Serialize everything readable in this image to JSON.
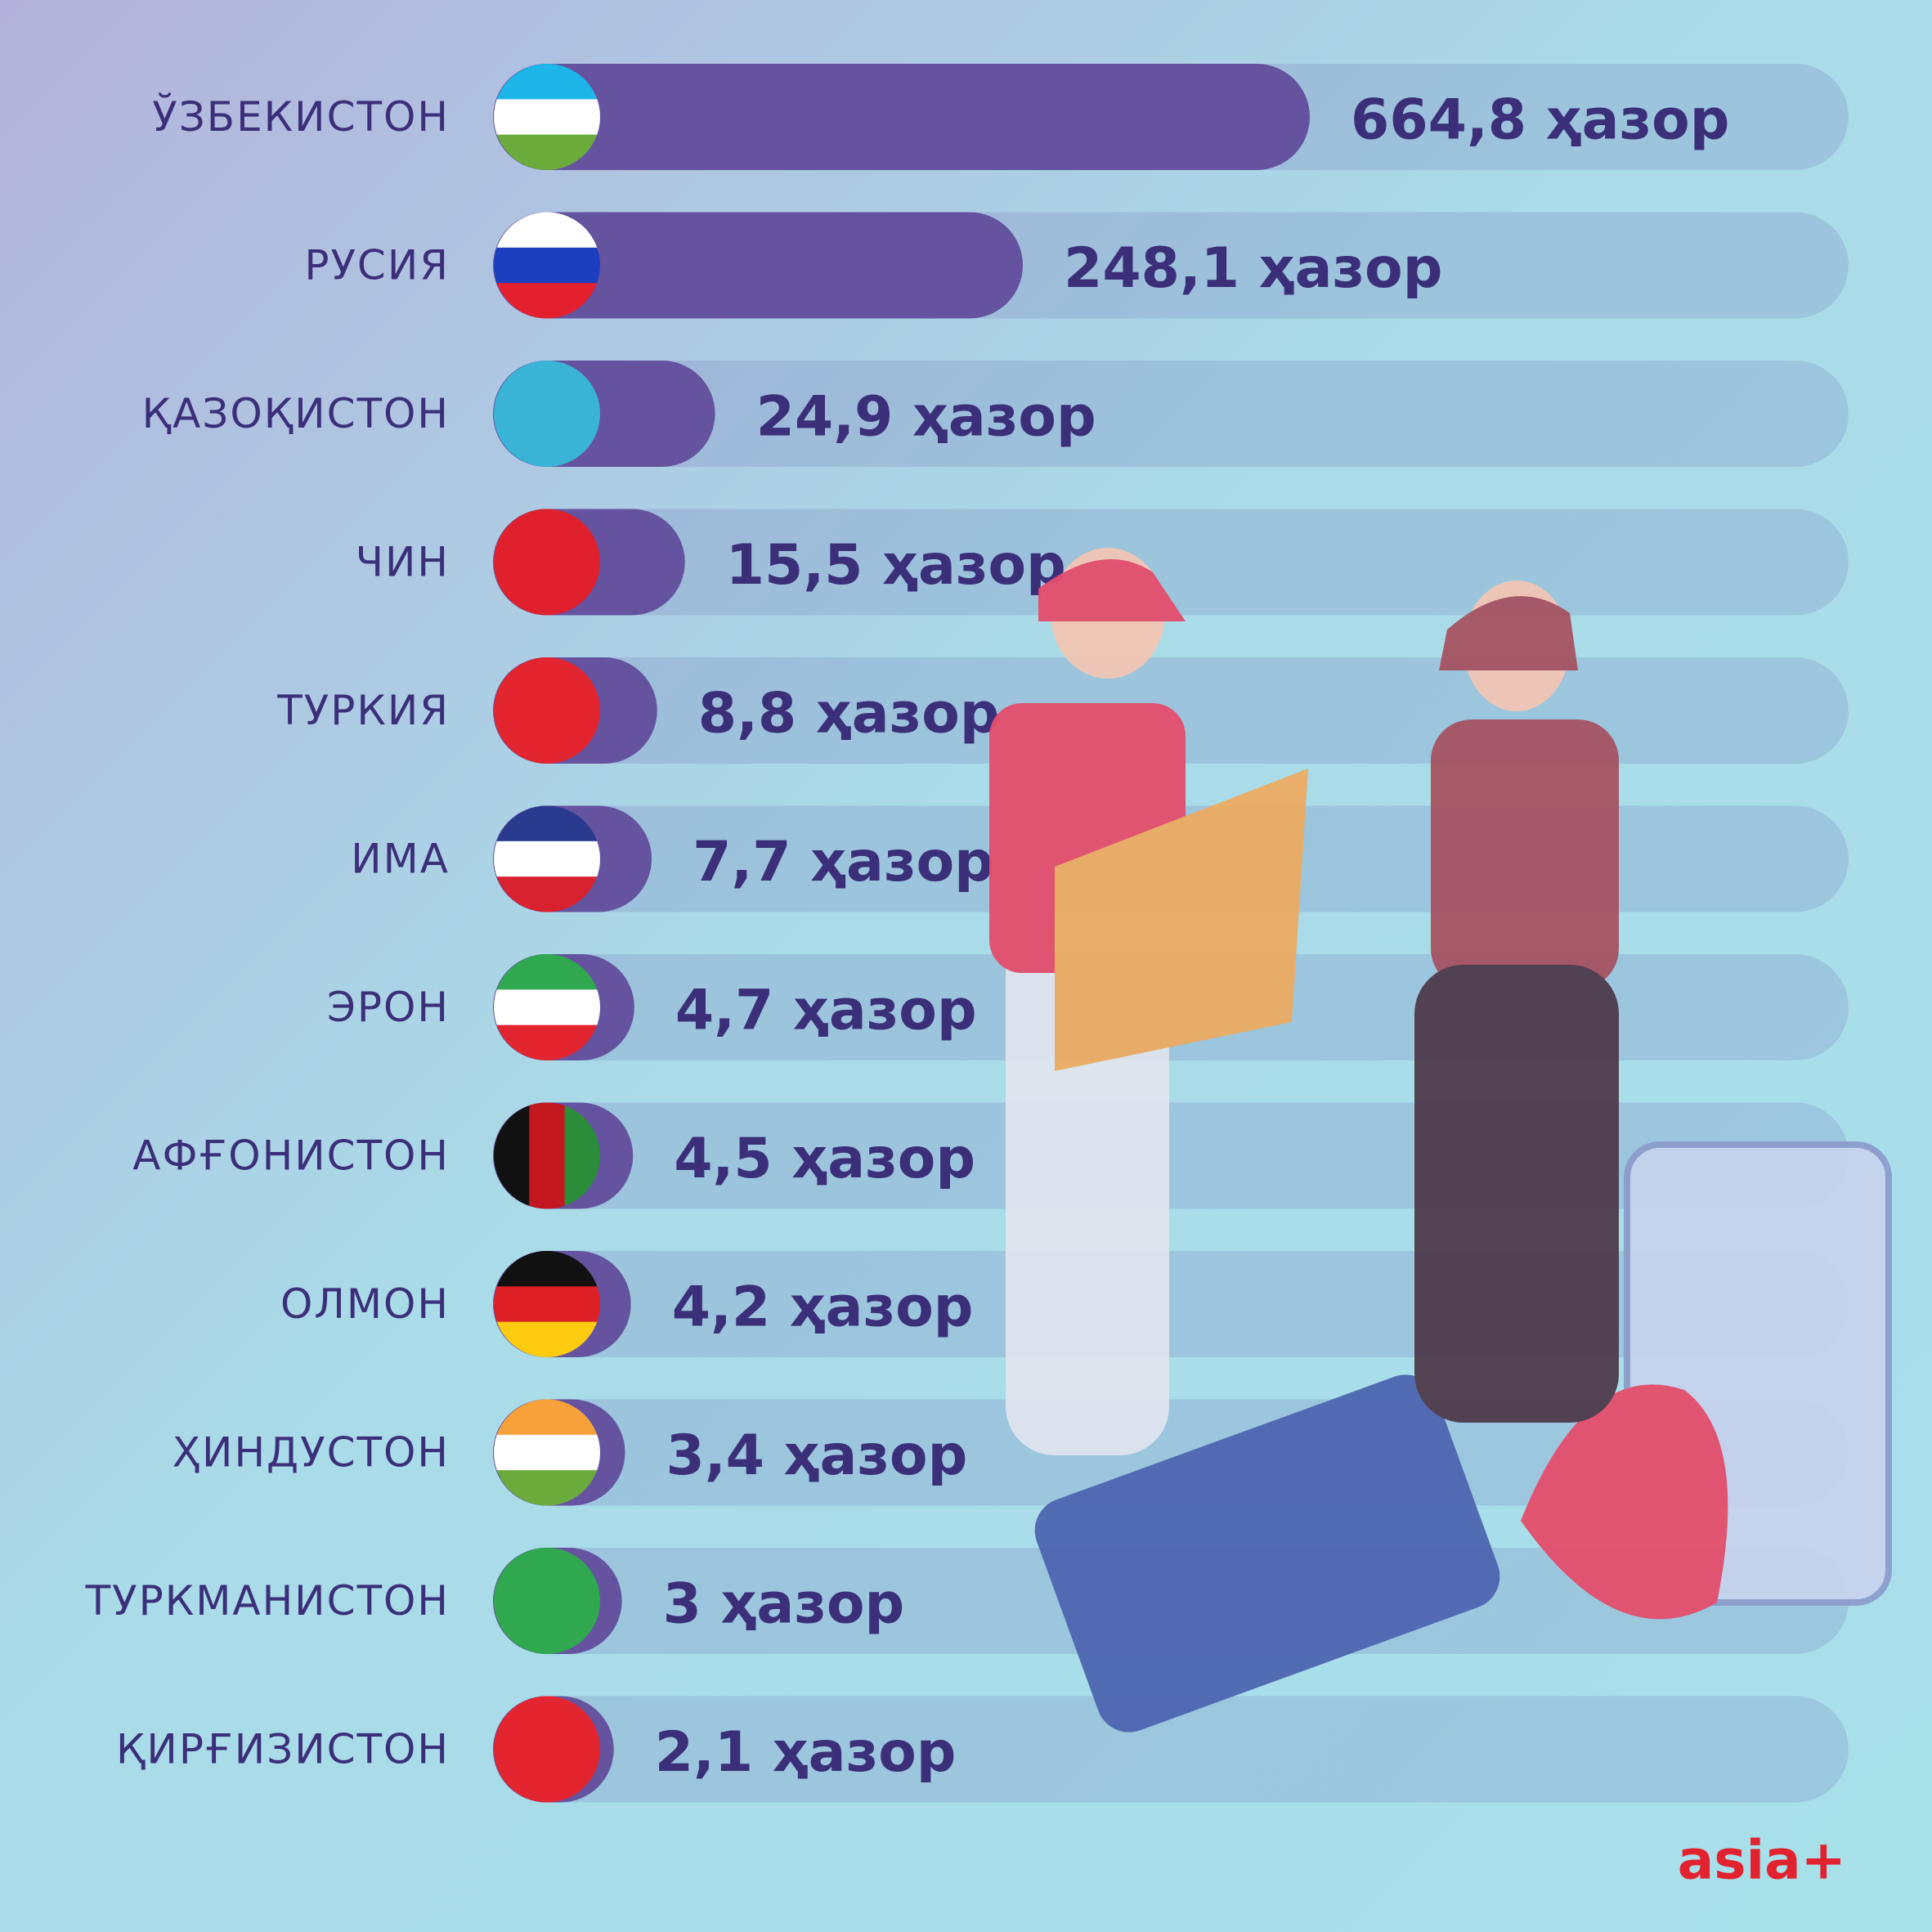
{
  "chart_data": {
    "type": "bar",
    "orientation": "horizontal",
    "scale": "sqrt",
    "color": "#6553a0",
    "categories": [
      "ЎЗБЕКИСТОН",
      "РУСИЯ",
      "ҚАЗОҚИСТОН",
      "ЧИН",
      "ТУРКИЯ",
      "ИМА",
      "ЭРОН",
      "АФҒОНИСТОН",
      "ОЛМОН",
      "ҲИНДУСТОН",
      "ТУРКМАНИСТОН",
      "ҚИРҒИЗИСТОН"
    ],
    "values": [
      664.8,
      248.1,
      24.9,
      15.5,
      8.8,
      7.7,
      4.7,
      4.5,
      4.2,
      3.4,
      3,
      2.1
    ],
    "value_labels": [
      "664,8 ҳазор",
      "248,1 ҳазор",
      "24,9 ҳазор",
      "15,5 ҳазор",
      "8,8 ҳазор",
      "7,7 ҳазор",
      "4,7 ҳазор",
      "4,5 ҳазор",
      "4,2 ҳазор",
      "3,4 ҳазор",
      "3 ҳазор",
      "2,1 ҳазор"
    ]
  },
  "logo": "asia+"
}
